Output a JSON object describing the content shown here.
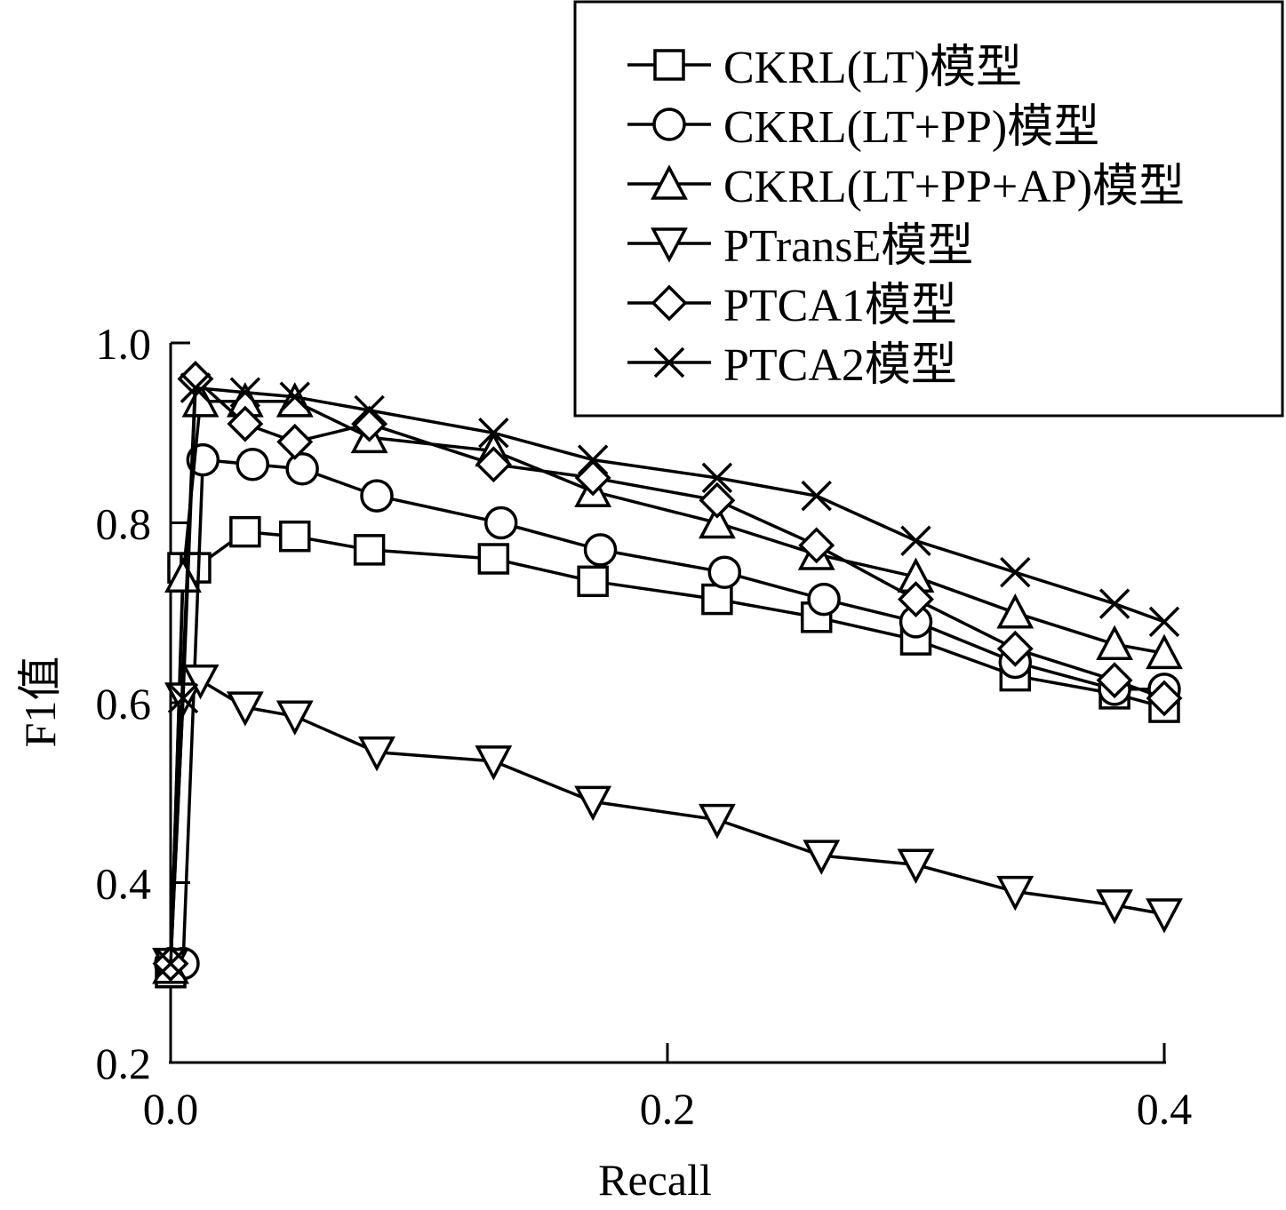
{
  "chart_data": {
    "type": "line",
    "xlabel": "Recall",
    "ylabel": "F1值",
    "xlim": [
      0.0,
      0.4
    ],
    "ylim": [
      0.2,
      1.0
    ],
    "xticks": [
      "0.0",
      "0.2",
      "0.4"
    ],
    "yticks": [
      "0.2",
      "0.4",
      "0.6",
      "0.8",
      "1.0"
    ],
    "grid": false,
    "legend_position": "top-right",
    "series": [
      {
        "name": "CKRL(LT)模型",
        "marker": "square",
        "x": [
          0.0,
          0.005,
          0.01,
          0.03,
          0.05,
          0.08,
          0.13,
          0.17,
          0.22,
          0.26,
          0.3,
          0.34,
          0.38,
          0.4
        ],
        "y": [
          0.3,
          0.75,
          0.75,
          0.79,
          0.785,
          0.77,
          0.76,
          0.735,
          0.715,
          0.695,
          0.67,
          0.63,
          0.61,
          0.595
        ]
      },
      {
        "name": "CKRL(LT+PP)模型",
        "marker": "circle",
        "x": [
          0.0,
          0.005,
          0.013,
          0.033,
          0.053,
          0.083,
          0.133,
          0.173,
          0.223,
          0.263,
          0.3,
          0.34,
          0.38,
          0.4
        ],
        "y": [
          0.31,
          0.31,
          0.87,
          0.865,
          0.86,
          0.83,
          0.8,
          0.77,
          0.745,
          0.715,
          0.69,
          0.645,
          0.615,
          0.615
        ]
      },
      {
        "name": "CKRL(LT+PP+AP)模型",
        "marker": "triangle-up",
        "x": [
          0.0,
          0.005,
          0.012,
          0.03,
          0.05,
          0.08,
          0.13,
          0.17,
          0.22,
          0.26,
          0.3,
          0.34,
          0.38,
          0.4
        ],
        "y": [
          0.305,
          0.74,
          0.935,
          0.935,
          0.935,
          0.895,
          0.88,
          0.835,
          0.8,
          0.765,
          0.74,
          0.7,
          0.665,
          0.655
        ]
      },
      {
        "name": "PTransE模型",
        "marker": "triangle-down",
        "x": [
          0.0,
          0.005,
          0.012,
          0.03,
          0.05,
          0.083,
          0.13,
          0.17,
          0.22,
          0.262,
          0.3,
          0.34,
          0.38,
          0.4
        ],
        "y": [
          0.31,
          0.605,
          0.625,
          0.595,
          0.585,
          0.545,
          0.535,
          0.49,
          0.47,
          0.43,
          0.42,
          0.39,
          0.375,
          0.365
        ]
      },
      {
        "name": "PTCA1模型",
        "marker": "diamond",
        "x": [
          0.0,
          0.01,
          0.03,
          0.05,
          0.08,
          0.13,
          0.17,
          0.22,
          0.26,
          0.3,
          0.34,
          0.38,
          0.4
        ],
        "y": [
          0.31,
          0.96,
          0.91,
          0.89,
          0.91,
          0.865,
          0.85,
          0.825,
          0.775,
          0.715,
          0.66,
          0.625,
          0.605
        ]
      },
      {
        "name": "PTCA2模型",
        "marker": "x",
        "x": [
          0.0,
          0.005,
          0.01,
          0.03,
          0.05,
          0.08,
          0.13,
          0.17,
          0.22,
          0.26,
          0.3,
          0.34,
          0.38,
          0.4
        ],
        "y": [
          0.31,
          0.605,
          0.95,
          0.945,
          0.94,
          0.925,
          0.9,
          0.87,
          0.85,
          0.83,
          0.78,
          0.745,
          0.71,
          0.69
        ]
      }
    ]
  }
}
